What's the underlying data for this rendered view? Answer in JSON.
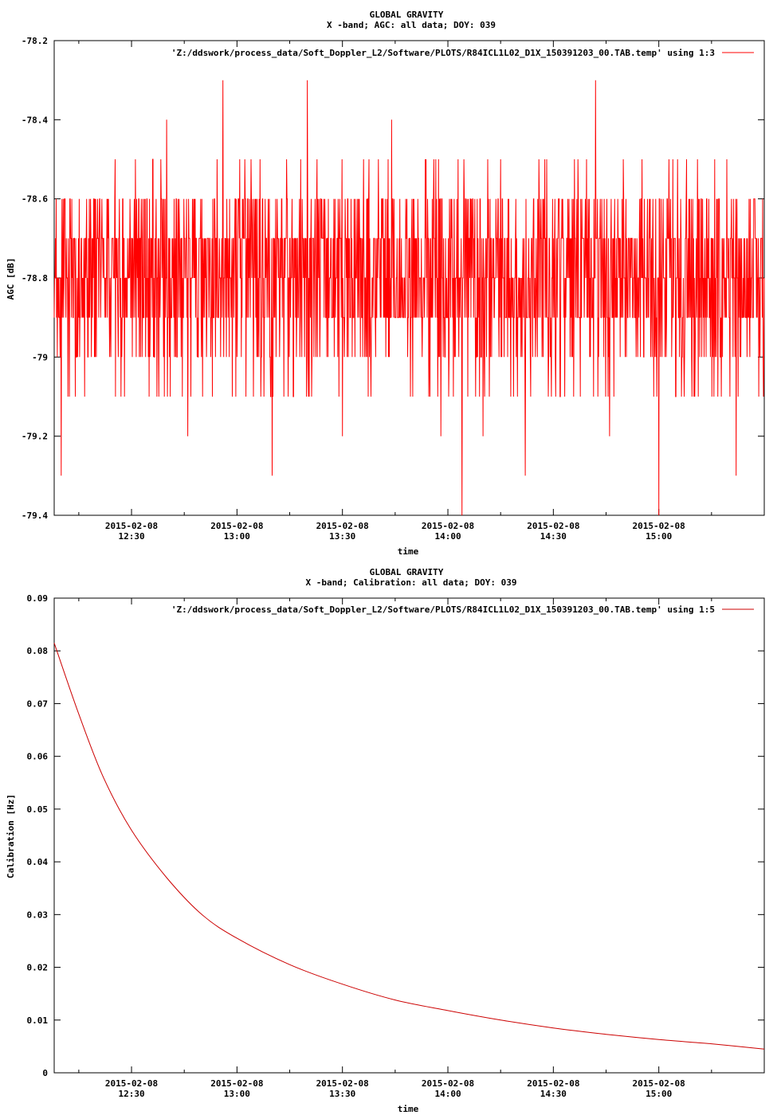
{
  "chart_data": [
    {
      "type": "line",
      "title": "GLOBAL GRAVITY",
      "subtitle": "X -band; AGC: all data; DOY: 039",
      "xlabel": "time",
      "ylabel": "AGC [dB]",
      "ylim": [
        -79.4,
        -78.2
      ],
      "y_ticks": [
        -78.2,
        -78.4,
        -78.6,
        -78.8,
        -79,
        -79.2,
        -79.4
      ],
      "y_tick_labels": [
        "-78.2",
        "-78.4",
        "-78.6",
        "-78.8",
        "-79",
        "-79.2",
        "-79.4"
      ],
      "xlim": [
        "12:08",
        "15:30"
      ],
      "x_ticks": [
        "12:30",
        "13:00",
        "13:30",
        "14:00",
        "14:30",
        "15:00"
      ],
      "x_tick_date": "2015-02-08",
      "legend": "'Z:/ddswork/process_data/Soft_Doppler_L2/Software/PLOTS/R84ICL1L02_D1X_150391203_00.TAB.temp' using 1:3",
      "legend_position": "top-right",
      "series": [
        {
          "color": "#ff0000",
          "note_values": "noisy AGC values quantized to 0.1 dB, mostly -78.7 to -78.9",
          "x": [
            "12:08",
            "12:10",
            "12:12",
            "12:14",
            "12:16",
            "12:18",
            "12:20",
            "12:22",
            "12:24",
            "12:26",
            "12:28",
            "12:30",
            "12:32",
            "12:34",
            "12:36",
            "12:38",
            "12:40",
            "12:42",
            "12:44",
            "12:46",
            "12:48",
            "12:50",
            "12:52",
            "12:54",
            "12:56",
            "12:58",
            "13:00",
            "13:02",
            "13:04",
            "13:06",
            "13:08",
            "13:10",
            "13:12",
            "13:14",
            "13:16",
            "13:18",
            "13:20",
            "13:22",
            "13:24",
            "13:26",
            "13:28",
            "13:30",
            "13:32",
            "13:34",
            "13:36",
            "13:38",
            "13:40",
            "13:42",
            "13:44",
            "13:46",
            "13:48",
            "13:50",
            "13:52",
            "13:54",
            "13:56",
            "13:58",
            "14:00",
            "14:02",
            "14:04",
            "14:06",
            "14:08",
            "14:10",
            "14:12",
            "14:14",
            "14:16",
            "14:18",
            "14:20",
            "14:22",
            "14:24",
            "14:26",
            "14:28",
            "14:30",
            "14:32",
            "14:34",
            "14:36",
            "14:38",
            "14:40",
            "14:42",
            "14:44",
            "14:46",
            "14:48",
            "14:50",
            "14:52",
            "14:54",
            "14:56",
            "14:58",
            "15:00",
            "15:02",
            "15:04",
            "15:06",
            "15:08",
            "15:10",
            "15:12",
            "15:14",
            "15:16",
            "15:18",
            "15:20",
            "15:22",
            "15:24",
            "15:26",
            "15:28",
            "15:30"
          ],
          "values": [
            -78.9,
            -79.3,
            -78.7,
            -79.1,
            -78.8,
            -78.6,
            -79.0,
            -78.7,
            -78.9,
            -78.8,
            -79.1,
            -78.7,
            -78.6,
            -79.0,
            -78.5,
            -78.8,
            -78.4,
            -78.9,
            -78.7,
            -79.2,
            -78.8,
            -78.6,
            -78.9,
            -78.7,
            -78.3,
            -78.8,
            -79.0,
            -78.7,
            -78.5,
            -78.9,
            -78.6,
            -79.3,
            -78.8,
            -78.7,
            -79.1,
            -78.9,
            -78.3,
            -78.8,
            -78.7,
            -78.6,
            -78.9,
            -79.2,
            -78.7,
            -78.8,
            -78.5,
            -79.0,
            -78.8,
            -78.7,
            -78.4,
            -78.9,
            -78.6,
            -79.1,
            -78.8,
            -78.7,
            -78.5,
            -79.2,
            -78.9,
            -78.8,
            -79.4,
            -78.7,
            -78.9,
            -79.2,
            -78.6,
            -78.8,
            -79.0,
            -78.7,
            -78.9,
            -79.3,
            -78.8,
            -78.6,
            -78.9,
            -78.7,
            -79.1,
            -78.8,
            -78.5,
            -78.9,
            -78.7,
            -78.3,
            -78.8,
            -79.2,
            -78.9,
            -78.6,
            -78.7,
            -79.0,
            -78.8,
            -78.9,
            -79.4,
            -78.7,
            -78.5,
            -78.8,
            -78.9,
            -79.1,
            -78.6,
            -78.8,
            -79.0,
            -78.7,
            -78.9,
            -79.3,
            -78.8,
            -78.6,
            -78.9,
            -78.8
          ]
        }
      ]
    },
    {
      "type": "line",
      "title": "GLOBAL GRAVITY",
      "subtitle": "X -band; Calibration: all data; DOY: 039",
      "xlabel": "time",
      "ylabel": "Calibration [Hz]",
      "ylim": [
        0,
        0.09
      ],
      "y_ticks": [
        0,
        0.01,
        0.02,
        0.03,
        0.04,
        0.05,
        0.06,
        0.07,
        0.08,
        0.09
      ],
      "y_tick_labels": [
        "0",
        "0.01",
        "0.02",
        "0.03",
        "0.04",
        "0.05",
        "0.06",
        "0.07",
        "0.08",
        "0.09"
      ],
      "xlim": [
        "12:08",
        "15:30"
      ],
      "x_ticks": [
        "12:30",
        "13:00",
        "13:30",
        "14:00",
        "14:30",
        "15:00"
      ],
      "x_tick_date": "2015-02-08",
      "legend": "'Z:/ddswork/process_data/Soft_Doppler_L2/Software/PLOTS/R84ICL1L02_D1X_150391203_00.TAB.temp' using 1:5",
      "legend_position": "top-right",
      "series": [
        {
          "color": "#cc0000",
          "x": [
            "12:08",
            "12:15",
            "12:22",
            "12:30",
            "12:40",
            "12:50",
            "13:00",
            "13:15",
            "13:30",
            "13:45",
            "14:00",
            "14:15",
            "14:30",
            "14:45",
            "15:00",
            "15:15",
            "15:30"
          ],
          "values": [
            0.0815,
            0.068,
            0.056,
            0.046,
            0.037,
            0.03,
            0.0255,
            0.0205,
            0.0168,
            0.0138,
            0.0118,
            0.01,
            0.0085,
            0.0073,
            0.0063,
            0.0055,
            0.0045
          ]
        }
      ]
    }
  ]
}
